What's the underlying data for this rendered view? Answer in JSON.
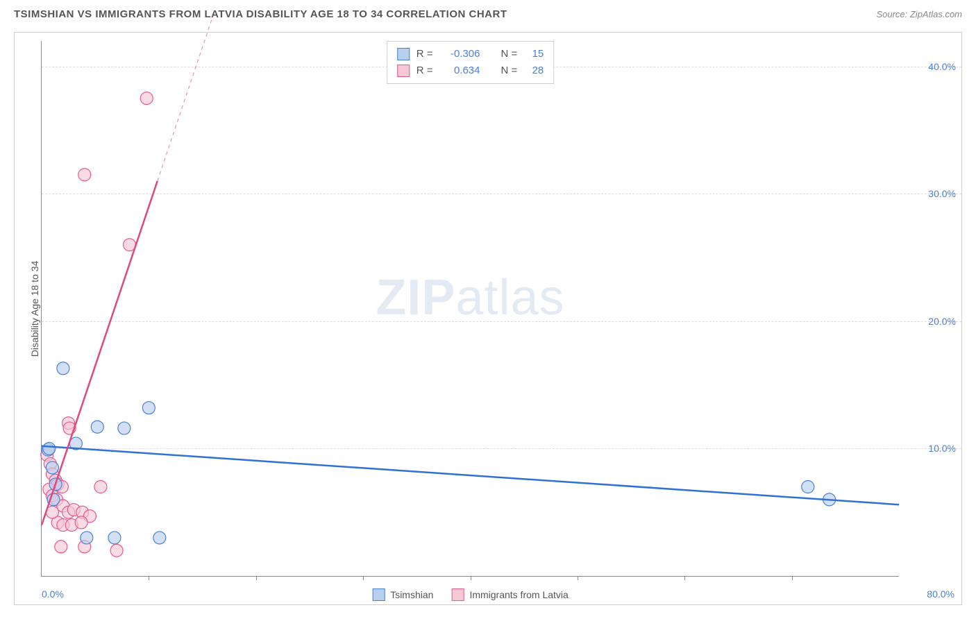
{
  "title": "TSIMSHIAN VS IMMIGRANTS FROM LATVIA DISABILITY AGE 18 TO 34 CORRELATION CHART",
  "source": "Source: ZipAtlas.com",
  "y_axis_label": "Disability Age 18 to 34",
  "watermark": {
    "bold": "ZIP",
    "light": "atlas"
  },
  "colors": {
    "series1_fill": "#b8d0f0",
    "series1_stroke": "#4a7fd6",
    "series2_fill": "#f6c8d5",
    "series2_stroke": "#e85a8a",
    "axis_text": "#4a7fd6",
    "grid": "#dddddd",
    "title_text": "#555555",
    "background": "#ffffff",
    "trend1": "#2f71d4",
    "trend2": "#e0487f"
  },
  "chart": {
    "type": "scatter",
    "xlim": [
      0,
      80
    ],
    "ylim": [
      0,
      42
    ],
    "x_ticks_minor": [
      10,
      20,
      30,
      40,
      50,
      60,
      70
    ],
    "x_tick_labels": {
      "min": "0.0%",
      "max": "80.0%"
    },
    "y_grid": [
      {
        "v": 10,
        "label": "10.0%"
      },
      {
        "v": 20,
        "label": "20.0%"
      },
      {
        "v": 30,
        "label": "30.0%"
      },
      {
        "v": 40,
        "label": "40.0%"
      }
    ],
    "marker_radius": 9,
    "marker_opacity": 0.65,
    "line_width": 2,
    "series": [
      {
        "name": "Tsimshian",
        "color_key": "series1",
        "stats": {
          "R": "-0.306",
          "N": "15"
        },
        "trend": {
          "x1": 0,
          "y1": 10.2,
          "x2": 80,
          "y2": 5.6,
          "dashed_from_x": null
        },
        "points": [
          [
            0.6,
            9.9
          ],
          [
            0.7,
            10.0
          ],
          [
            3.2,
            10.4
          ],
          [
            5.2,
            11.7
          ],
          [
            7.7,
            11.6
          ],
          [
            2.0,
            16.3
          ],
          [
            10.0,
            13.2
          ],
          [
            4.2,
            3.0
          ],
          [
            6.8,
            3.0
          ],
          [
            11.0,
            3.0
          ],
          [
            71.5,
            7.0
          ],
          [
            73.5,
            6.0
          ],
          [
            1.0,
            8.5
          ],
          [
            1.3,
            7.2
          ],
          [
            1.1,
            6.0
          ]
        ]
      },
      {
        "name": "Immigrants from Latvia",
        "color_key": "series2",
        "stats": {
          "R": "0.634",
          "N": "28"
        },
        "trend": {
          "x1": 0,
          "y1": 4.0,
          "x2": 16,
          "y2": 44.0,
          "dashed_from_x": 10.8
        },
        "points": [
          [
            9.8,
            37.5
          ],
          [
            4.0,
            31.5
          ],
          [
            8.2,
            26.0
          ],
          [
            2.5,
            12.0
          ],
          [
            2.6,
            11.6
          ],
          [
            0.5,
            9.5
          ],
          [
            0.8,
            8.8
          ],
          [
            1.0,
            8.0
          ],
          [
            1.3,
            7.5
          ],
          [
            1.5,
            7.2
          ],
          [
            1.9,
            7.0
          ],
          [
            0.7,
            6.8
          ],
          [
            1.0,
            6.3
          ],
          [
            1.4,
            6.0
          ],
          [
            2.0,
            5.5
          ],
          [
            2.5,
            5.0
          ],
          [
            3.0,
            5.2
          ],
          [
            3.8,
            5.0
          ],
          [
            4.5,
            4.7
          ],
          [
            5.5,
            7.0
          ],
          [
            1.5,
            4.2
          ],
          [
            2.0,
            4.0
          ],
          [
            2.8,
            4.0
          ],
          [
            3.7,
            4.2
          ],
          [
            1.8,
            2.3
          ],
          [
            4.0,
            2.3
          ],
          [
            7.0,
            2.0
          ],
          [
            1.0,
            5.0
          ]
        ]
      }
    ]
  },
  "legend_labels": {
    "R": "R =",
    "N": "N ="
  }
}
